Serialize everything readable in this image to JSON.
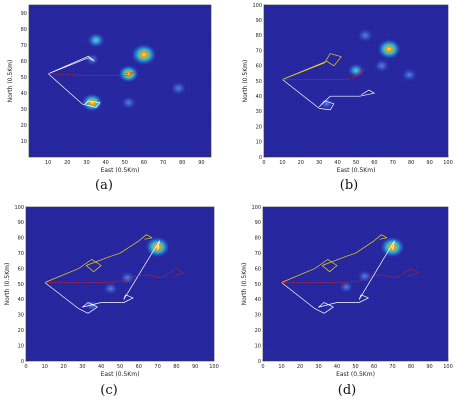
{
  "figure": {
    "captions": [
      "(a)",
      "(b)",
      "(c)",
      "(d)"
    ]
  },
  "chart_data": [
    {
      "type": "heatmap",
      "panel": "(a)",
      "xlabel": "East (0.5Km)",
      "ylabel": "North (0.5Km)",
      "xlim": [
        0,
        95
      ],
      "ylim": [
        0,
        95
      ],
      "xticks": [
        "10",
        "20",
        "30",
        "40",
        "50",
        "60",
        "70",
        "80",
        "90"
      ],
      "yticks": [
        "10",
        "20",
        "30",
        "40",
        "50",
        "60",
        "70",
        "80",
        "90"
      ],
      "background_color": "#2a2aa8",
      "hotspots": [
        {
          "x": 35,
          "y": 73,
          "intensity": 0.55
        },
        {
          "x": 60,
          "y": 64,
          "intensity": 1.0
        },
        {
          "x": 52,
          "y": 52,
          "intensity": 0.7
        },
        {
          "x": 33,
          "y": 34,
          "intensity": 0.75
        },
        {
          "x": 78,
          "y": 43,
          "intensity": 0.4
        },
        {
          "x": 52,
          "y": 34,
          "intensity": 0.35
        },
        {
          "x": 33,
          "y": 61,
          "intensity": 0.3
        }
      ],
      "tracks": [
        {
          "color": "#ffffff",
          "points": [
            [
              10,
              52
            ],
            [
              31,
              63
            ],
            [
              34,
              60
            ],
            [
              31,
              62
            ],
            [
              10,
              52
            ],
            [
              28,
              33
            ],
            [
              35,
              31
            ],
            [
              37,
              34
            ],
            [
              31,
              35
            ],
            [
              29,
              33
            ]
          ]
        },
        {
          "color": "#e02020",
          "points": [
            [
              10,
              52
            ],
            [
              30,
              51
            ],
            [
              45,
              51
            ],
            [
              52,
              51
            ],
            [
              55,
              53
            ],
            [
              50,
              52
            ]
          ]
        }
      ]
    },
    {
      "type": "heatmap",
      "panel": "(b)",
      "xlabel": "East (0.5Km)",
      "ylabel": "North (0.5Km)",
      "xlim": [
        0,
        100
      ],
      "ylim": [
        0,
        100
      ],
      "xticks": [
        "0",
        "10",
        "20",
        "30",
        "40",
        "50",
        "60",
        "70",
        "80",
        "90",
        "100"
      ],
      "yticks": [
        "0",
        "10",
        "20",
        "30",
        "40",
        "50",
        "60",
        "70",
        "80",
        "90",
        "100"
      ],
      "background_color": "#2a2aa8",
      "hotspots": [
        {
          "x": 55,
          "y": 80,
          "intensity": 0.4
        },
        {
          "x": 68,
          "y": 71,
          "intensity": 0.9
        },
        {
          "x": 64,
          "y": 60,
          "intensity": 0.35
        },
        {
          "x": 50,
          "y": 57,
          "intensity": 0.45
        },
        {
          "x": 79,
          "y": 54,
          "intensity": 0.35
        },
        {
          "x": 34,
          "y": 35,
          "intensity": 0.25
        }
      ],
      "tracks": [
        {
          "color": "#e8d020",
          "points": [
            [
              10,
              51
            ],
            [
              33,
              62
            ],
            [
              36,
              68
            ],
            [
              42,
              66
            ],
            [
              38,
              60
            ],
            [
              34,
              63
            ],
            [
              10,
              51
            ]
          ]
        },
        {
          "color": "#ffffff",
          "points": [
            [
              10,
              51
            ],
            [
              30,
              32
            ],
            [
              36,
              31
            ],
            [
              38,
              35
            ],
            [
              33,
              37
            ],
            [
              30,
              33
            ],
            [
              36,
              40
            ],
            [
              52,
              40
            ],
            [
              60,
              42
            ],
            [
              57,
              44
            ],
            [
              53,
              41
            ]
          ]
        },
        {
          "color": "#e02020",
          "points": [
            [
              10,
              51
            ],
            [
              30,
              51
            ],
            [
              45,
              51
            ],
            [
              50,
              53
            ],
            [
              55,
              58
            ],
            [
              52,
              55
            ],
            [
              48,
              52
            ]
          ]
        }
      ]
    },
    {
      "type": "heatmap",
      "panel": "(c)",
      "xlabel": "East (0.5Km)",
      "ylabel": "North (0.5Km)",
      "xlim": [
        0,
        100
      ],
      "ylim": [
        0,
        100
      ],
      "xticks": [
        "0",
        "10",
        "20",
        "30",
        "40",
        "50",
        "60",
        "70",
        "80",
        "90",
        "100"
      ],
      "yticks": [
        "0",
        "10",
        "20",
        "30",
        "40",
        "50",
        "60",
        "70",
        "80",
        "90",
        "100"
      ],
      "background_color": "#2a2aa8",
      "hotspots": [
        {
          "x": 70,
          "y": 74,
          "intensity": 0.95
        },
        {
          "x": 54,
          "y": 54,
          "intensity": 0.35
        },
        {
          "x": 45,
          "y": 47,
          "intensity": 0.3
        },
        {
          "x": 35,
          "y": 36,
          "intensity": 0.2
        }
      ],
      "tracks": [
        {
          "color": "#e8d020",
          "points": [
            [
              10,
              51
            ],
            [
              28,
              60
            ],
            [
              35,
              66
            ],
            [
              40,
              62
            ],
            [
              36,
              58
            ],
            [
              32,
              62
            ],
            [
              45,
              68
            ],
            [
              50,
              70
            ],
            [
              60,
              78
            ],
            [
              64,
              82
            ],
            [
              67,
              80
            ],
            [
              63,
              79
            ]
          ]
        },
        {
          "color": "#ffffff",
          "points": [
            [
              10,
              51
            ],
            [
              28,
              34
            ],
            [
              33,
              31
            ],
            [
              38,
              35
            ],
            [
              33,
              38
            ],
            [
              30,
              35
            ],
            [
              40,
              38
            ],
            [
              52,
              38
            ],
            [
              57,
              41
            ],
            [
              53,
              43
            ],
            [
              52,
              40
            ],
            [
              68,
              72
            ],
            [
              71,
              78
            ],
            [
              70,
              72
            ]
          ]
        },
        {
          "color": "#e02020",
          "points": [
            [
              10,
              51
            ],
            [
              30,
              51
            ],
            [
              45,
              51
            ],
            [
              52,
              52
            ],
            [
              58,
              55
            ],
            [
              64,
              56
            ],
            [
              72,
              54
            ],
            [
              80,
              60
            ],
            [
              84,
              57
            ],
            [
              78,
              55
            ]
          ]
        }
      ]
    },
    {
      "type": "heatmap",
      "panel": "(d)",
      "xlabel": "East (0.5Km)",
      "ylabel": "North (0.5Km)",
      "xlim": [
        0,
        100
      ],
      "ylim": [
        0,
        100
      ],
      "xticks": [
        "0",
        "10",
        "20",
        "30",
        "40",
        "50",
        "60",
        "70",
        "80",
        "90",
        "100"
      ],
      "yticks": [
        "0",
        "10",
        "20",
        "30",
        "40",
        "50",
        "60",
        "70",
        "80",
        "90",
        "100"
      ],
      "background_color": "#2a2aa8",
      "hotspots": [
        {
          "x": 70,
          "y": 74,
          "intensity": 0.95
        },
        {
          "x": 55,
          "y": 55,
          "intensity": 0.3
        },
        {
          "x": 45,
          "y": 48,
          "intensity": 0.25
        }
      ],
      "tracks": [
        {
          "color": "#e8d020",
          "points": [
            [
              10,
              51
            ],
            [
              28,
              60
            ],
            [
              35,
              66
            ],
            [
              40,
              62
            ],
            [
              36,
              58
            ],
            [
              32,
              62
            ],
            [
              45,
              68
            ],
            [
              50,
              70
            ],
            [
              60,
              78
            ],
            [
              64,
              82
            ],
            [
              67,
              80
            ],
            [
              63,
              79
            ]
          ]
        },
        {
          "color": "#ffffff",
          "points": [
            [
              10,
              51
            ],
            [
              28,
              34
            ],
            [
              33,
              31
            ],
            [
              38,
              35
            ],
            [
              33,
              38
            ],
            [
              30,
              35
            ],
            [
              40,
              38
            ],
            [
              52,
              38
            ],
            [
              57,
              41
            ],
            [
              53,
              43
            ],
            [
              52,
              40
            ],
            [
              68,
              72
            ],
            [
              71,
              78
            ],
            [
              70,
              72
            ]
          ]
        },
        {
          "color": "#e02020",
          "points": [
            [
              10,
              51
            ],
            [
              30,
              51
            ],
            [
              45,
              51
            ],
            [
              52,
              52
            ],
            [
              58,
              55
            ],
            [
              64,
              56
            ],
            [
              72,
              54
            ],
            [
              80,
              60
            ],
            [
              84,
              57
            ],
            [
              78,
              55
            ]
          ]
        }
      ]
    }
  ]
}
